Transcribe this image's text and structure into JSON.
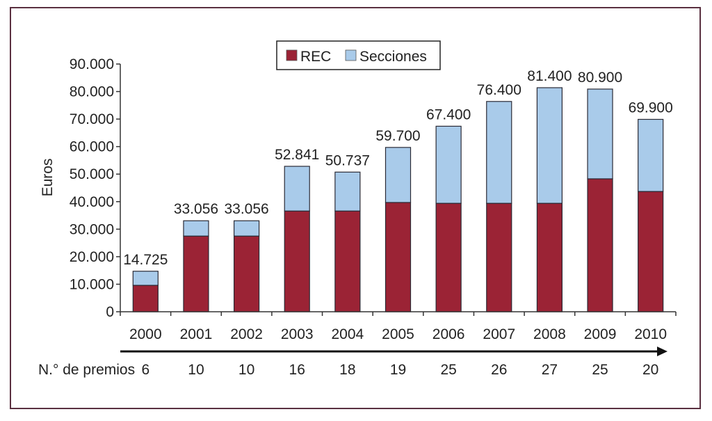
{
  "chart_data": {
    "type": "bar",
    "stacked": true,
    "title": "",
    "xlabel": "",
    "ylabel": "Euros",
    "ylim": [
      0,
      90000
    ],
    "yticks": [
      0,
      10000,
      20000,
      30000,
      40000,
      50000,
      60000,
      70000,
      80000,
      90000
    ],
    "ytick_labels": [
      "0",
      "10.000",
      "20.000",
      "30.000",
      "40.000",
      "50.000",
      "60.000",
      "70.000",
      "80.000",
      "90.000"
    ],
    "categories": [
      "2000",
      "2001",
      "2002",
      "2003",
      "2004",
      "2005",
      "2006",
      "2007",
      "2008",
      "2009",
      "2010"
    ],
    "series": [
      {
        "name": "REC",
        "color": "#9b2335",
        "values": [
          9600,
          27500,
          27500,
          36600,
          36600,
          39700,
          39400,
          39400,
          39400,
          48300,
          43700
        ]
      },
      {
        "name": "Secciones",
        "color": "#a9cbea",
        "values": [
          5125,
          5556,
          5556,
          16241,
          14137,
          20000,
          28000,
          37000,
          42000,
          32600,
          26200
        ]
      }
    ],
    "totals": [
      14725,
      33056,
      33056,
      52841,
      50737,
      59700,
      67400,
      76400,
      81400,
      80900,
      69900
    ],
    "total_labels": [
      "14.725",
      "33.056",
      "33.056",
      "52.841",
      "50.737",
      "59.700",
      "67.400",
      "76.400",
      "81.400",
      "80.900",
      "69.900"
    ],
    "legend": {
      "placement": "top-center",
      "entries": [
        "REC",
        "Secciones"
      ]
    },
    "premios_label": "N.° de premios",
    "premios": [
      "6",
      "10",
      "10",
      "16",
      "18",
      "19",
      "25",
      "26",
      "27",
      "25",
      "20"
    ],
    "grid": false
  }
}
